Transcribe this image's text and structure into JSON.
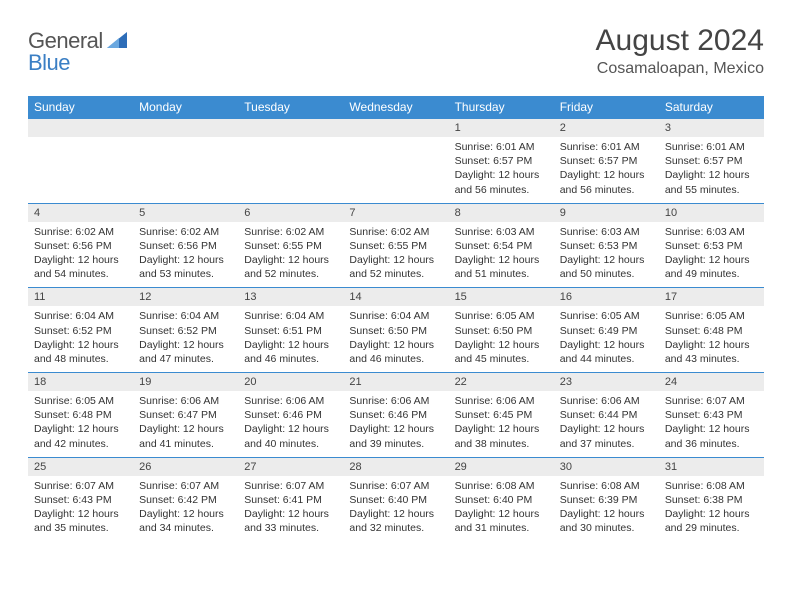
{
  "logo": {
    "part1": "General",
    "part2": "Blue"
  },
  "title": "August 2024",
  "location": "Cosamaloapan, Mexico",
  "day_names": [
    "Sunday",
    "Monday",
    "Tuesday",
    "Wednesday",
    "Thursday",
    "Friday",
    "Saturday"
  ],
  "colors": {
    "header_bg": "#3b8bd0",
    "row_divider": "#3b8bd0",
    "daynum_bg": "#ececec",
    "text": "#333333",
    "title_text": "#444444",
    "logo_gray": "#555555",
    "logo_blue": "#3b7fc4"
  },
  "weeks": [
    [
      {
        "n": "",
        "sr": "",
        "ss": "",
        "dl": ""
      },
      {
        "n": "",
        "sr": "",
        "ss": "",
        "dl": ""
      },
      {
        "n": "",
        "sr": "",
        "ss": "",
        "dl": ""
      },
      {
        "n": "",
        "sr": "",
        "ss": "",
        "dl": ""
      },
      {
        "n": "1",
        "sr": "6:01 AM",
        "ss": "6:57 PM",
        "dl": "12 hours and 56 minutes."
      },
      {
        "n": "2",
        "sr": "6:01 AM",
        "ss": "6:57 PM",
        "dl": "12 hours and 56 minutes."
      },
      {
        "n": "3",
        "sr": "6:01 AM",
        "ss": "6:57 PM",
        "dl": "12 hours and 55 minutes."
      }
    ],
    [
      {
        "n": "4",
        "sr": "6:02 AM",
        "ss": "6:56 PM",
        "dl": "12 hours and 54 minutes."
      },
      {
        "n": "5",
        "sr": "6:02 AM",
        "ss": "6:56 PM",
        "dl": "12 hours and 53 minutes."
      },
      {
        "n": "6",
        "sr": "6:02 AM",
        "ss": "6:55 PM",
        "dl": "12 hours and 52 minutes."
      },
      {
        "n": "7",
        "sr": "6:02 AM",
        "ss": "6:55 PM",
        "dl": "12 hours and 52 minutes."
      },
      {
        "n": "8",
        "sr": "6:03 AM",
        "ss": "6:54 PM",
        "dl": "12 hours and 51 minutes."
      },
      {
        "n": "9",
        "sr": "6:03 AM",
        "ss": "6:53 PM",
        "dl": "12 hours and 50 minutes."
      },
      {
        "n": "10",
        "sr": "6:03 AM",
        "ss": "6:53 PM",
        "dl": "12 hours and 49 minutes."
      }
    ],
    [
      {
        "n": "11",
        "sr": "6:04 AM",
        "ss": "6:52 PM",
        "dl": "12 hours and 48 minutes."
      },
      {
        "n": "12",
        "sr": "6:04 AM",
        "ss": "6:52 PM",
        "dl": "12 hours and 47 minutes."
      },
      {
        "n": "13",
        "sr": "6:04 AM",
        "ss": "6:51 PM",
        "dl": "12 hours and 46 minutes."
      },
      {
        "n": "14",
        "sr": "6:04 AM",
        "ss": "6:50 PM",
        "dl": "12 hours and 46 minutes."
      },
      {
        "n": "15",
        "sr": "6:05 AM",
        "ss": "6:50 PM",
        "dl": "12 hours and 45 minutes."
      },
      {
        "n": "16",
        "sr": "6:05 AM",
        "ss": "6:49 PM",
        "dl": "12 hours and 44 minutes."
      },
      {
        "n": "17",
        "sr": "6:05 AM",
        "ss": "6:48 PM",
        "dl": "12 hours and 43 minutes."
      }
    ],
    [
      {
        "n": "18",
        "sr": "6:05 AM",
        "ss": "6:48 PM",
        "dl": "12 hours and 42 minutes."
      },
      {
        "n": "19",
        "sr": "6:06 AM",
        "ss": "6:47 PM",
        "dl": "12 hours and 41 minutes."
      },
      {
        "n": "20",
        "sr": "6:06 AM",
        "ss": "6:46 PM",
        "dl": "12 hours and 40 minutes."
      },
      {
        "n": "21",
        "sr": "6:06 AM",
        "ss": "6:46 PM",
        "dl": "12 hours and 39 minutes."
      },
      {
        "n": "22",
        "sr": "6:06 AM",
        "ss": "6:45 PM",
        "dl": "12 hours and 38 minutes."
      },
      {
        "n": "23",
        "sr": "6:06 AM",
        "ss": "6:44 PM",
        "dl": "12 hours and 37 minutes."
      },
      {
        "n": "24",
        "sr": "6:07 AM",
        "ss": "6:43 PM",
        "dl": "12 hours and 36 minutes."
      }
    ],
    [
      {
        "n": "25",
        "sr": "6:07 AM",
        "ss": "6:43 PM",
        "dl": "12 hours and 35 minutes."
      },
      {
        "n": "26",
        "sr": "6:07 AM",
        "ss": "6:42 PM",
        "dl": "12 hours and 34 minutes."
      },
      {
        "n": "27",
        "sr": "6:07 AM",
        "ss": "6:41 PM",
        "dl": "12 hours and 33 minutes."
      },
      {
        "n": "28",
        "sr": "6:07 AM",
        "ss": "6:40 PM",
        "dl": "12 hours and 32 minutes."
      },
      {
        "n": "29",
        "sr": "6:08 AM",
        "ss": "6:40 PM",
        "dl": "12 hours and 31 minutes."
      },
      {
        "n": "30",
        "sr": "6:08 AM",
        "ss": "6:39 PM",
        "dl": "12 hours and 30 minutes."
      },
      {
        "n": "31",
        "sr": "6:08 AM",
        "ss": "6:38 PM",
        "dl": "12 hours and 29 minutes."
      }
    ]
  ],
  "labels": {
    "sunrise": "Sunrise:",
    "sunset": "Sunset:",
    "daylight": "Daylight:"
  }
}
